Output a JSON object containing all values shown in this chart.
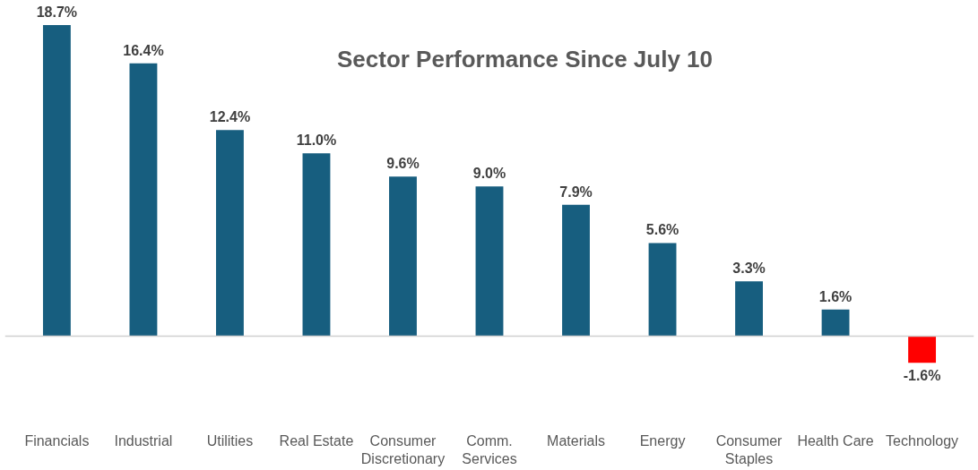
{
  "chart_data": {
    "type": "bar",
    "title": "Sector Performance Since July 10",
    "categories": [
      "Financials",
      "Industrial",
      "Utilities",
      "Real Estate",
      "Consumer Discretionary",
      "Comm. Services",
      "Materials",
      "Energy",
      "Consumer Staples",
      "Health Care",
      "Technology"
    ],
    "values": [
      18.7,
      16.4,
      12.4,
      11.0,
      9.6,
      9.0,
      7.9,
      5.6,
      3.3,
      1.6,
      -1.6
    ],
    "colors": [
      "#175e7f",
      "#175e7f",
      "#175e7f",
      "#175e7f",
      "#175e7f",
      "#175e7f",
      "#175e7f",
      "#175e7f",
      "#175e7f",
      "#175e7f",
      "#ff0000"
    ],
    "value_labels": [
      "18.7%",
      "16.4%",
      "12.4%",
      "11.0%",
      "9.6%",
      "9.0%",
      "7.9%",
      "5.6%",
      "3.3%",
      "1.6%",
      "-1.6%"
    ],
    "grid": false
  }
}
